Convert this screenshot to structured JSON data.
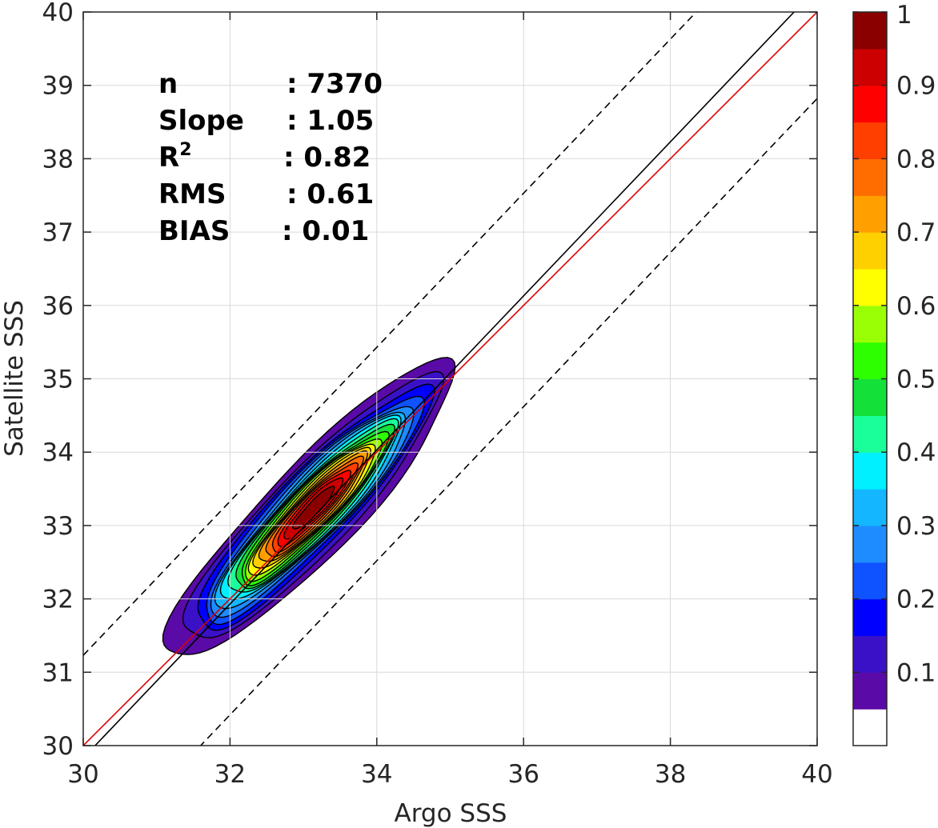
{
  "chart_data": {
    "type": "contour",
    "xlabel": "Argo SSS",
    "ylabel": "Satellite SSS",
    "xlim": [
      30,
      40
    ],
    "ylim": [
      30,
      40
    ],
    "xticks": [
      "30",
      "32",
      "34",
      "36",
      "38",
      "40"
    ],
    "yticks": [
      "30",
      "31",
      "32",
      "33",
      "34",
      "35",
      "36",
      "37",
      "38",
      "39",
      "40"
    ],
    "grid": true,
    "stats": [
      {
        "label": "n",
        "value": ": 7370"
      },
      {
        "label": "Slope",
        "value": ": 1.05"
      },
      {
        "label": "R",
        "sup": "2",
        "value": ": 0.82"
      },
      {
        "label": "RMS",
        "value": ": 0.61"
      },
      {
        "label": "BIAS",
        "value": ": 0.01"
      }
    ],
    "lines": [
      {
        "kind": "identity",
        "color": "#dd0000",
        "slope": 1.0,
        "intercept": 0.0
      },
      {
        "kind": "regression",
        "color": "#000000",
        "slope": 1.05,
        "intercept": -1.67
      },
      {
        "kind": "upper-bound",
        "color": "#000000",
        "dash": true,
        "slope": 1.05,
        "intercept": -0.27
      },
      {
        "kind": "lower-bound",
        "color": "#000000",
        "dash": true,
        "slope": 1.05,
        "intercept": -3.18
      }
    ],
    "density": {
      "center": [
        33.1,
        33.2
      ],
      "semi_major": 2.75,
      "semi_minor": 0.62,
      "angle_deg": 46,
      "levels": [
        0.05,
        0.1,
        0.15,
        0.2,
        0.25,
        0.3,
        0.35,
        0.4,
        0.45,
        0.5,
        0.55,
        0.6,
        0.65,
        0.7,
        0.75,
        0.8,
        0.85,
        0.9,
        0.95
      ]
    },
    "colorbar": {
      "min": 0,
      "max": 1,
      "ticks": [
        "0.1",
        "0.2",
        "0.3",
        "0.4",
        "0.5",
        "0.6",
        "0.7",
        "0.8",
        "0.9",
        "1"
      ],
      "tick_values": [
        0.1,
        0.2,
        0.3,
        0.4,
        0.5,
        0.6,
        0.7,
        0.8,
        0.9,
        1.0
      ],
      "colors": [
        "#ffffff",
        "#5a0aa6",
        "#3b11c8",
        "#0000ff",
        "#0f52ff",
        "#1e8cff",
        "#13b6ff",
        "#00f0ff",
        "#1aff9a",
        "#14e03a",
        "#2dff00",
        "#9aff05",
        "#ffff00",
        "#ffd000",
        "#ff9f00",
        "#ff6d00",
        "#ff3f00",
        "#ff0000",
        "#cc0000",
        "#8a0000"
      ]
    }
  }
}
